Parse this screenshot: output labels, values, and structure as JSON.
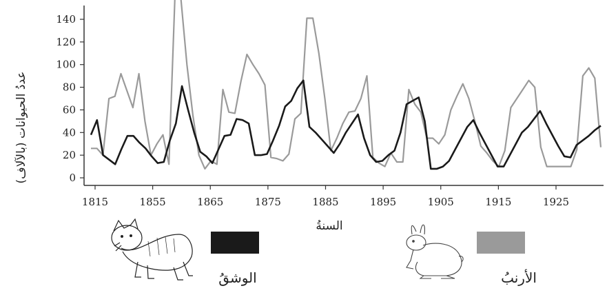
{
  "chart_data": {
    "type": "line",
    "title": "",
    "xlabel": "السنةُ",
    "ylabel": "عددُ الحيوانات (بالآلاف)",
    "ylim": [
      0,
      150
    ],
    "yticks": [
      0,
      20,
      40,
      60,
      80,
      100,
      120,
      140
    ],
    "x_tick_labels": [
      "1815",
      "1855",
      "1865",
      "1875",
      "1885",
      "1895",
      "1905",
      "1915",
      "1925"
    ],
    "grid": false,
    "legend_position": "bottom",
    "series": [
      {
        "name": "الأرنبُ",
        "color": "#9a9a9a",
        "values": [
          26,
          26,
          20,
          70,
          72,
          92,
          77,
          62,
          92,
          50,
          20,
          30,
          38,
          12,
          160,
          158,
          100,
          55,
          20,
          8,
          15,
          12,
          78,
          58,
          57,
          85,
          109,
          100,
          92,
          82,
          18,
          17,
          15,
          21,
          52,
          57,
          141,
          141,
          110,
          70,
          24,
          35,
          48,
          58,
          59,
          70,
          90,
          18,
          13,
          10,
          22,
          14,
          14,
          78,
          65,
          58,
          35,
          35,
          30,
          38,
          60,
          72,
          83,
          70,
          50,
          28,
          22,
          15,
          10,
          24,
          62,
          70,
          78,
          86,
          80,
          27,
          10,
          10,
          10,
          10,
          10,
          25,
          90,
          97,
          88,
          27
        ],
        "x_start": 0
      },
      {
        "name": "الوشقُ",
        "color": "#1a1a1a",
        "values": [
          38,
          51,
          20,
          16,
          12,
          25,
          37,
          37,
          31,
          26,
          19,
          13,
          14,
          33,
          48,
          81,
          60,
          40,
          23,
          19,
          13,
          25,
          37,
          38,
          52,
          51,
          48,
          20,
          20,
          21,
          33,
          46,
          63,
          68,
          79,
          86,
          45,
          40,
          34,
          28,
          22,
          30,
          40,
          48,
          56,
          35,
          20,
          14,
          15,
          20,
          24,
          40,
          65,
          68,
          71,
          50,
          8,
          8,
          10,
          15,
          25,
          35,
          45,
          51,
          40,
          30,
          20,
          10,
          10,
          20,
          30,
          40,
          45,
          52,
          59,
          48,
          38,
          28,
          19,
          18,
          29,
          33,
          37,
          42,
          46
        ],
        "x_start": 0
      }
    ]
  }
}
